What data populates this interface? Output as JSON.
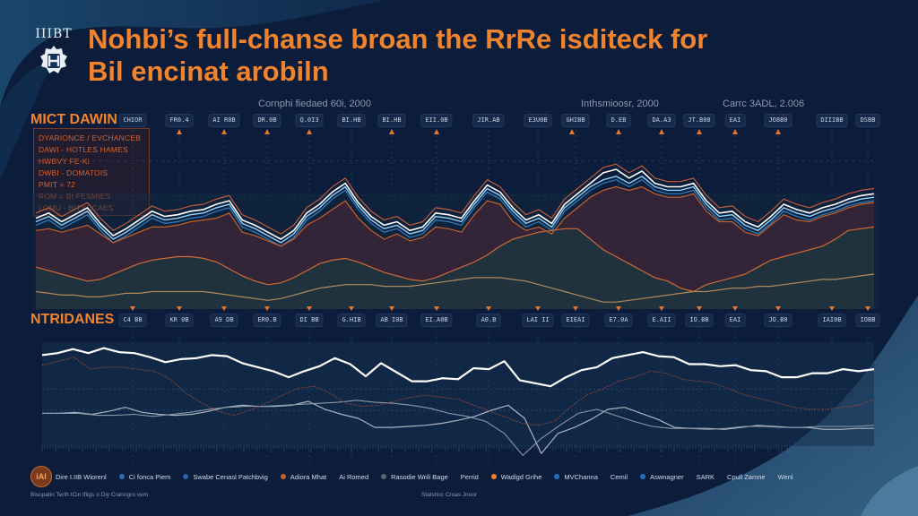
{
  "header": {
    "logo_text": "IIIBT",
    "title_line1": "Nohbi’s full-chanse broan the RrRe isditeck for",
    "title_line2": "Bil encinat arobiln"
  },
  "colors": {
    "background": "#0b1d3a",
    "accent_orange": "#f0832c",
    "line_white": "#ffffff",
    "line_light_blue": "#8fd3ff",
    "line_blue": "#2f7fc1",
    "area_maroon": "#3a2436",
    "area_teal": "#1f3440"
  },
  "chart_data": [
    {
      "type": "area",
      "section_label": "MICT DAWIN",
      "annotations": [
        "Cornphi fiedaed 60i, 2000",
        "Inthsmioosr, 2000",
        "Carrc 3ADL, 2.006"
      ],
      "tick_labels": [
        "CHIOR",
        "FR0.4",
        "AI R0B",
        "DR.0B",
        "Q.0I3",
        "BI.HB",
        "BI.HB",
        "EII.0B",
        "JIR.AB",
        "E3U0B",
        "GHIBB",
        "D.EB",
        "DA.A3",
        "JT.B08",
        "EAI",
        "JO8B0",
        "DIIIBB",
        "DSBB"
      ],
      "info_box": [
        "DYARIONCE / EVCHANCEB",
        "DAWI - HOTLES HAMES",
        "HWBVY FE-Ki",
        "DWBI - DOMATOIS",
        "PMIT = 72",
        "ROM = BI FESMIES",
        "LOMU - BITYCCAES"
      ],
      "xlim": [
        0,
        60
      ],
      "ylim": [
        0,
        100
      ],
      "grid": true,
      "series": [
        {
          "name": "upper-white",
          "style": "line",
          "values": [
            52,
            55,
            50,
            54,
            58,
            49,
            42,
            46,
            51,
            56,
            53,
            54,
            56,
            57,
            60,
            62,
            51,
            48,
            44,
            40,
            45,
            55,
            60,
            67,
            72,
            61,
            53,
            48,
            50,
            45,
            47,
            55,
            54,
            52,
            62,
            71,
            67,
            58,
            51,
            54,
            49,
            60,
            66,
            72,
            78,
            80,
            75,
            79,
            72,
            70,
            70,
            72,
            62,
            55,
            56,
            50,
            47,
            53,
            60,
            57,
            55,
            58,
            60,
            63,
            65,
            66
          ]
        },
        {
          "name": "upper-light-blue",
          "style": "line",
          "values": [
            50,
            53,
            48,
            52,
            56,
            47,
            40,
            44,
            49,
            54,
            51,
            52,
            54,
            55,
            58,
            60,
            49,
            46,
            42,
            38,
            43,
            53,
            58,
            65,
            70,
            59,
            51,
            46,
            48,
            43,
            45,
            53,
            52,
            50,
            60,
            69,
            65,
            56,
            49,
            52,
            47,
            58,
            64,
            70,
            74,
            76,
            72,
            76,
            70,
            68,
            68,
            70,
            60,
            53,
            54,
            48,
            45,
            51,
            58,
            55,
            53,
            56,
            58,
            61,
            63,
            64
          ]
        },
        {
          "name": "maroon-area",
          "style": "area",
          "values": [
            45,
            46,
            44,
            46,
            48,
            43,
            38,
            41,
            44,
            47,
            47,
            48,
            50,
            51,
            52,
            55,
            44,
            42,
            39,
            36,
            40,
            48,
            52,
            57,
            62,
            52,
            45,
            40,
            43,
            39,
            41,
            47,
            46,
            44,
            54,
            62,
            60,
            50,
            45,
            47,
            43,
            52,
            58,
            64,
            68,
            70,
            68,
            70,
            66,
            64,
            64,
            66,
            56,
            50,
            50,
            44,
            42,
            48,
            54,
            51,
            50,
            53,
            55,
            58,
            60,
            61
          ]
        },
        {
          "name": "orange-mid",
          "style": "line",
          "values": [
            24,
            22,
            20,
            18,
            16,
            17,
            20,
            23,
            26,
            28,
            29,
            30,
            30,
            29,
            27,
            23,
            19,
            16,
            14,
            15,
            18,
            22,
            26,
            28,
            29,
            27,
            24,
            21,
            19,
            17,
            16,
            18,
            21,
            24,
            27,
            31,
            36,
            40,
            42,
            44,
            45,
            46,
            46,
            40,
            34,
            30,
            26,
            22,
            18,
            16,
            12,
            10,
            14,
            16,
            18,
            20,
            24,
            28,
            30,
            32,
            34,
            36,
            40,
            45,
            46,
            47
          ]
        },
        {
          "name": "tan-low",
          "style": "line",
          "values": [
            10,
            9,
            8,
            8,
            7,
            7,
            8,
            9,
            9,
            10,
            10,
            10,
            10,
            10,
            9,
            8,
            7,
            6,
            5,
            6,
            8,
            10,
            12,
            13,
            14,
            14,
            14,
            13,
            13,
            13,
            14,
            15,
            16,
            17,
            18,
            18,
            18,
            17,
            16,
            14,
            12,
            10,
            8,
            6,
            4,
            4,
            5,
            6,
            7,
            8,
            9,
            10,
            10,
            11,
            12,
            12,
            13,
            13,
            14,
            15,
            16,
            17,
            17,
            18,
            19,
            20
          ]
        }
      ]
    },
    {
      "type": "line",
      "section_label": "NTRIDANES",
      "tick_labels": [
        "C4 BB",
        "KR 0B",
        "A9 DB",
        "ER0.B",
        "DI BB",
        "G.HIB",
        "AB I0B",
        "EI.A0B",
        "A0.B",
        "LAI II",
        "EIEAI",
        "E7.0A",
        "E.AII",
        "IO.BB",
        "EAI",
        "JO.B0",
        "IAI0B",
        "IOBB"
      ],
      "footer_annotation": "Stalshoc Croas Jnuor",
      "xlim": [
        0,
        60
      ],
      "ylim": [
        0,
        100
      ],
      "grid": true,
      "series": [
        {
          "name": "white-main",
          "style": "line",
          "values": [
            88,
            90,
            94,
            90,
            95,
            91,
            90,
            86,
            81,
            84,
            85,
            88,
            87,
            80,
            76,
            72,
            66,
            72,
            77,
            85,
            79,
            67,
            80,
            71,
            62,
            62,
            65,
            64,
            75,
            74,
            82,
            63,
            60,
            57,
            66,
            73,
            76,
            85,
            88,
            91,
            87,
            86,
            79,
            79,
            77,
            78,
            73,
            72,
            66,
            66,
            70,
            70,
            74,
            72,
            74
          ]
        },
        {
          "name": "maroon-dotted",
          "style": "dotted",
          "values": [
            78,
            82,
            86,
            74,
            76,
            76,
            74,
            72,
            64,
            50,
            40,
            32,
            28,
            33,
            40,
            48,
            55,
            57,
            50,
            40,
            37,
            38,
            42,
            46,
            48,
            46,
            44,
            38,
            32,
            26,
            20,
            18,
            22,
            36,
            48,
            54,
            62,
            66,
            72,
            70,
            64,
            62,
            60,
            54,
            48,
            44,
            40,
            36,
            34,
            34,
            36,
            38,
            44
          ]
        },
        {
          "name": "grey-a",
          "style": "line",
          "values": [
            30,
            30,
            31,
            29,
            32,
            36,
            31,
            29,
            28,
            29,
            32,
            36,
            38,
            37,
            37,
            38,
            42,
            34,
            29,
            25,
            16,
            16,
            17,
            18,
            20,
            23,
            27,
            33,
            38,
            25,
            -10,
            10,
            16,
            24,
            34,
            36,
            30,
            24,
            16,
            15,
            15,
            14,
            16,
            18,
            17,
            16,
            16,
            14,
            14,
            15,
            15
          ]
        },
        {
          "name": "grey-b",
          "style": "line",
          "values": [
            30,
            30,
            30,
            28,
            28,
            29,
            27,
            29,
            31,
            34,
            36,
            37,
            37,
            38,
            39,
            40,
            41,
            43,
            41,
            40,
            38,
            35,
            30,
            27,
            22,
            10,
            -12,
            5,
            18,
            30,
            34,
            28,
            22,
            17,
            15,
            15,
            14,
            15,
            17,
            17,
            16,
            16,
            17,
            17,
            17,
            18
          ]
        }
      ]
    }
  ],
  "legend": {
    "badge_text": "iAI",
    "items": [
      {
        "label": "Dire I.IIB Wiorenl",
        "color": ""
      },
      {
        "label": "Ci fonca Piem",
        "color": "#2f6fb1"
      },
      {
        "label": "Swabe Cenasl Patchbvig",
        "color": "#2f5fb1"
      },
      {
        "label": "Adiora Mhat",
        "color": "#c8612a"
      },
      {
        "label": "Ai Romed",
        "color": ""
      },
      {
        "label": "Rasodie Wrili Bage",
        "color": "#5b6674"
      },
      {
        "label": "Perrid",
        "color": ""
      },
      {
        "label": "Wadlgd Grihe",
        "color": "#f0832c"
      },
      {
        "label": "MVChanna",
        "color": "#1f6fc4"
      },
      {
        "label": "Cemil",
        "color": ""
      },
      {
        "label": "Aswnagner",
        "color": "#1f6fc4"
      },
      {
        "label": "SARK",
        "color": ""
      },
      {
        "label": "Cpull Zamne",
        "color": ""
      },
      {
        "label": "Wenl",
        "color": ""
      }
    ],
    "footnote_left": "Bisopatin Terth ICin Ifiigs o Diy Cranngro vem",
    "footnote_center": "Stalshoc Croas Jnuor"
  }
}
